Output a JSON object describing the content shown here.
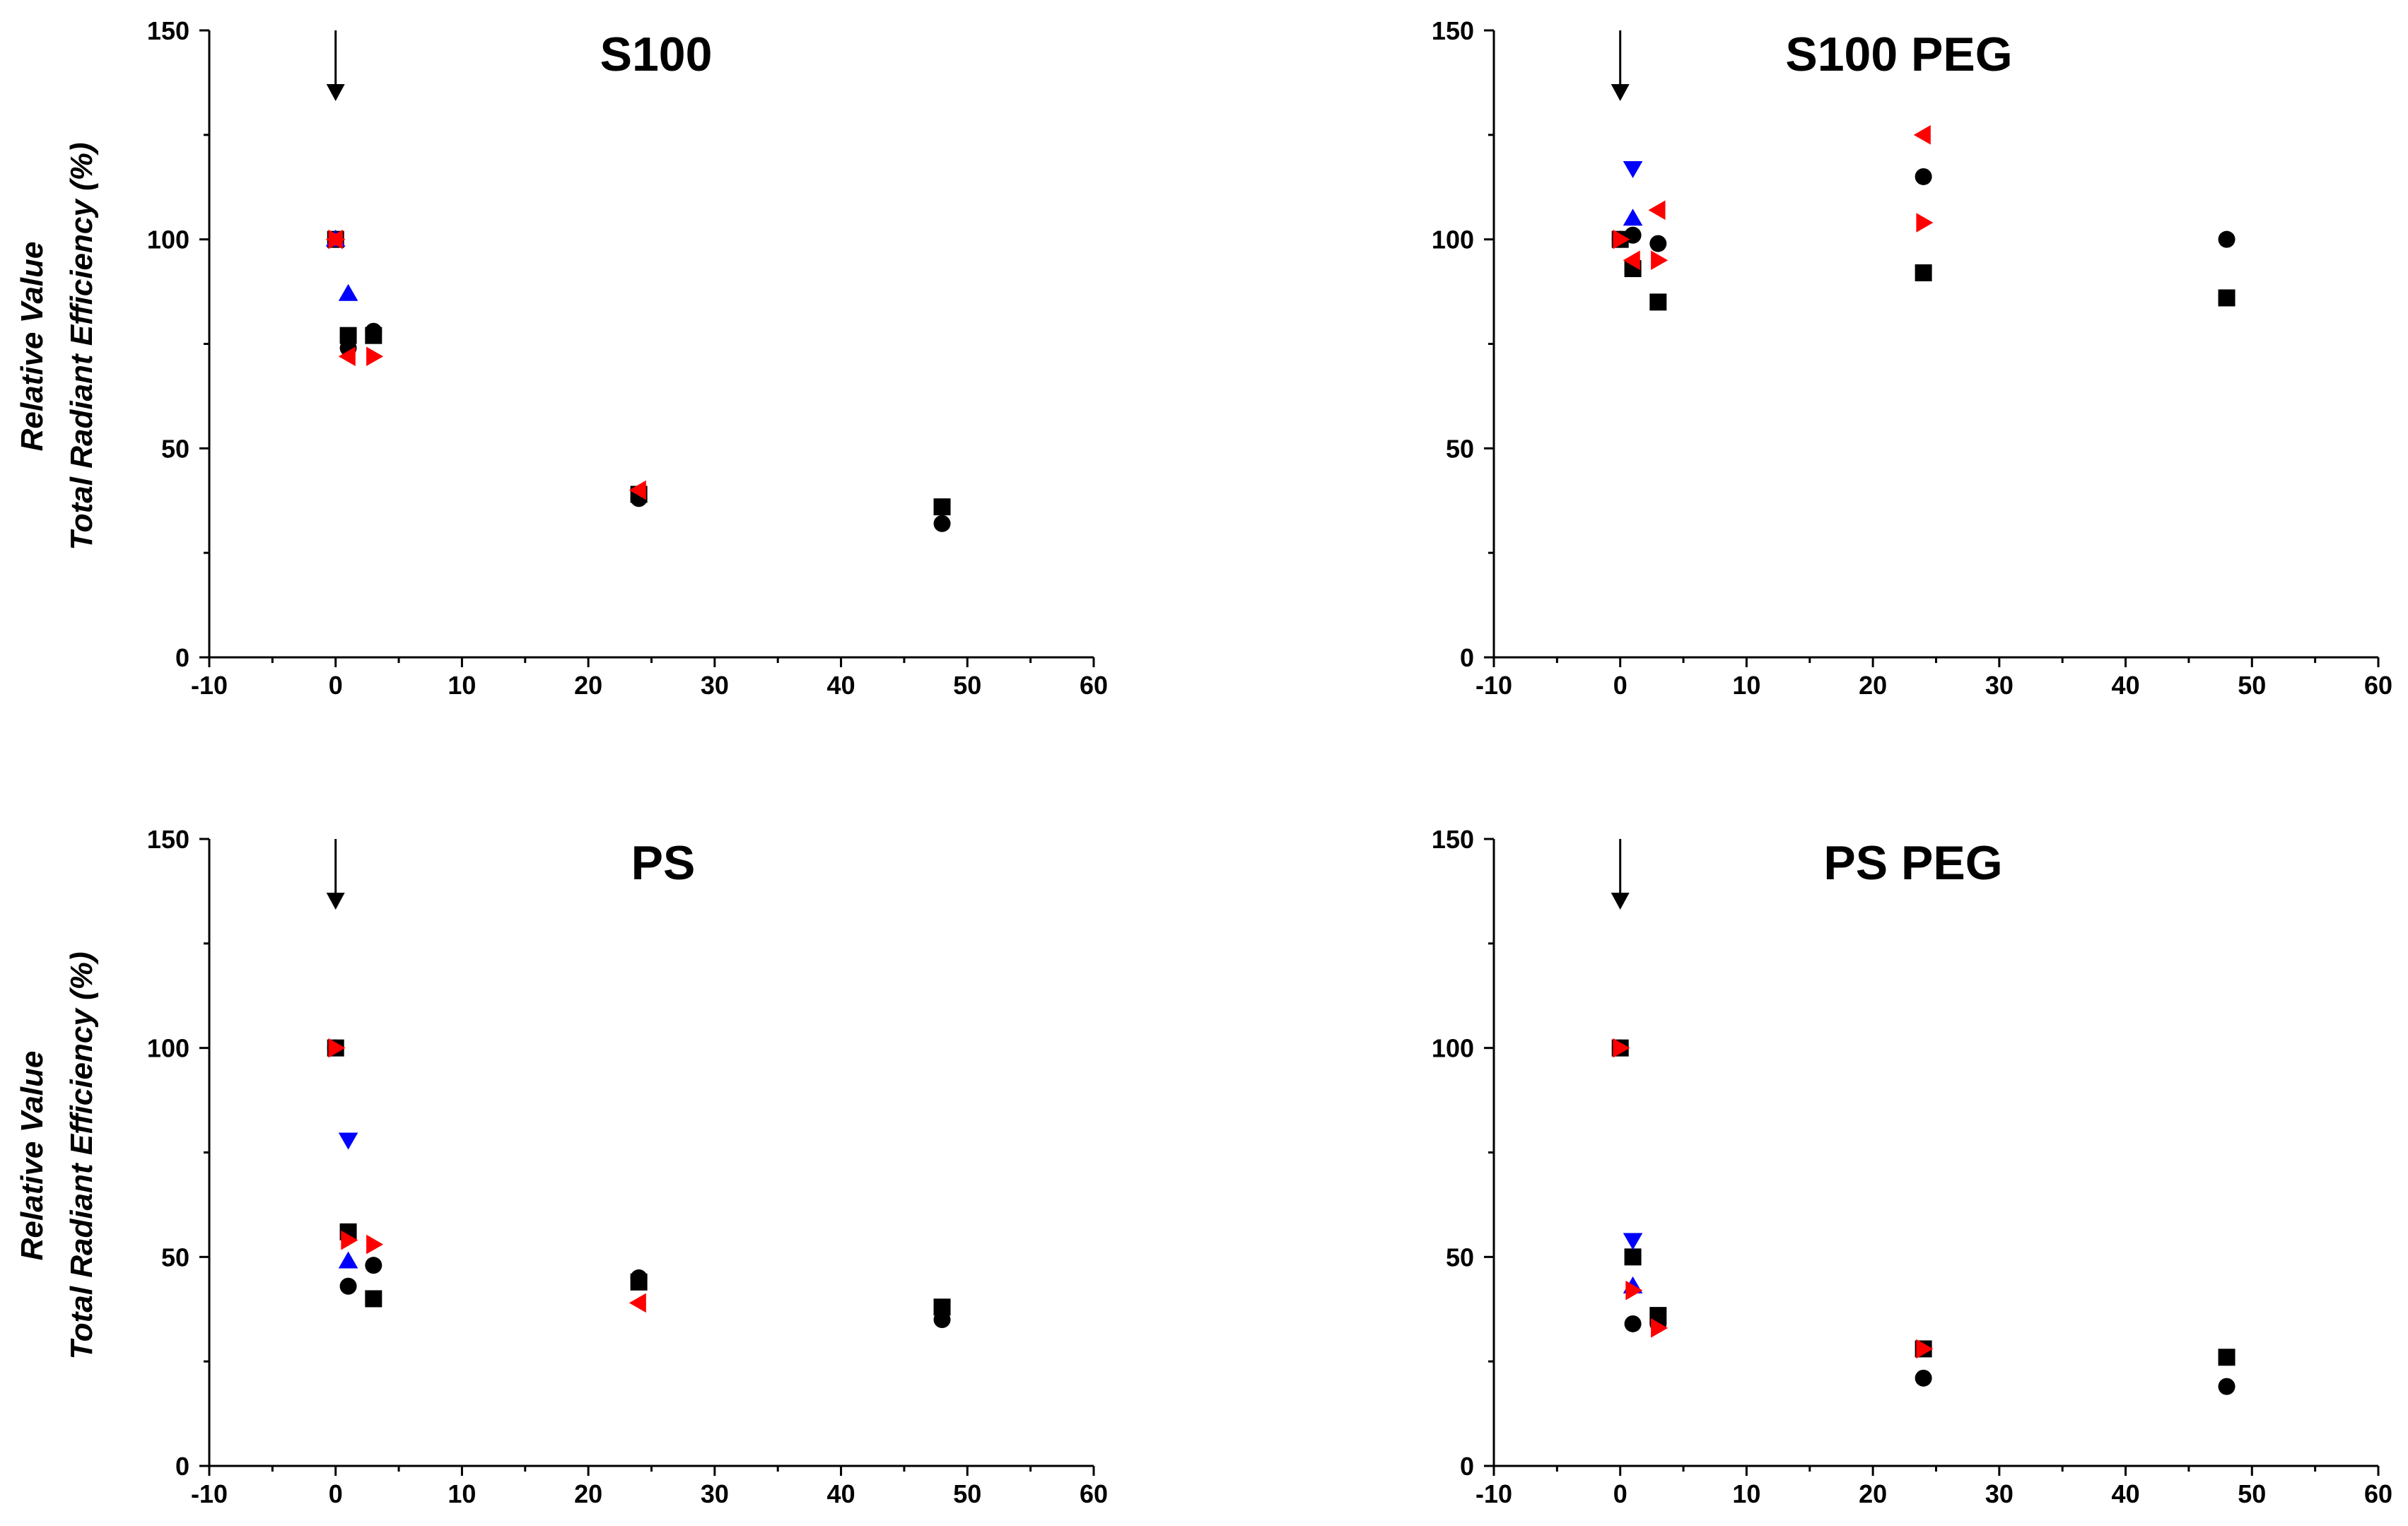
{
  "figure": {
    "ylabel_line1": "Relative Value",
    "ylabel_line2": "Total Radiant Efficiency (%)"
  },
  "colors": {
    "black": "#000000",
    "blue": "#0000ff",
    "red": "#ff0000"
  },
  "chart_data": [
    {
      "type": "scatter",
      "title": "S100",
      "xlim": [
        -10,
        60
      ],
      "ylim": [
        0,
        150
      ],
      "xticks": [
        -10,
        0,
        10,
        20,
        30,
        40,
        50,
        60
      ],
      "yticks": [
        0,
        50,
        100,
        150
      ],
      "arrow_x": 0,
      "series": [
        {
          "name": "square",
          "marker": "square",
          "color": "#000000",
          "points": [
            [
              0,
              100
            ],
            [
              1,
              77
            ],
            [
              3,
              77
            ],
            [
              24,
              39
            ],
            [
              48,
              36
            ]
          ]
        },
        {
          "name": "circle",
          "marker": "circle",
          "color": "#000000",
          "points": [
            [
              0,
              100
            ],
            [
              1,
              74
            ],
            [
              3,
              78
            ],
            [
              24,
              38
            ],
            [
              48,
              32
            ]
          ]
        },
        {
          "name": "triangle-up",
          "marker": "triangle-up",
          "color": "#0000ff",
          "points": [
            [
              0,
              100
            ],
            [
              1,
              87
            ]
          ]
        },
        {
          "name": "triangle-left",
          "marker": "triangle-left",
          "color": "#ff0000",
          "points": [
            [
              0,
              100
            ],
            [
              1,
              72
            ],
            [
              24,
              40
            ]
          ]
        },
        {
          "name": "triangle-right",
          "marker": "triangle-right",
          "color": "#ff0000",
          "points": [
            [
              0,
              100
            ],
            [
              3,
              72
            ]
          ]
        }
      ]
    },
    {
      "type": "scatter",
      "title": "S100 PEG",
      "xlim": [
        -10,
        60
      ],
      "ylim": [
        0,
        150
      ],
      "xticks": [
        -10,
        0,
        10,
        20,
        30,
        40,
        50,
        60
      ],
      "yticks": [
        0,
        50,
        100,
        150
      ],
      "arrow_x": 0,
      "series": [
        {
          "name": "square",
          "marker": "square",
          "color": "#000000",
          "points": [
            [
              0,
              100
            ],
            [
              1,
              93
            ],
            [
              3,
              85
            ],
            [
              24,
              92
            ],
            [
              48,
              86
            ]
          ]
        },
        {
          "name": "circle",
          "marker": "circle",
          "color": "#000000",
          "points": [
            [
              0,
              100
            ],
            [
              1,
              101
            ],
            [
              3,
              99
            ],
            [
              24,
              115
            ],
            [
              48,
              100
            ]
          ]
        },
        {
          "name": "triangle-down",
          "marker": "triangle-down",
          "color": "#0000ff",
          "points": [
            [
              1,
              117
            ]
          ]
        },
        {
          "name": "triangle-up",
          "marker": "triangle-up",
          "color": "#0000ff",
          "points": [
            [
              1,
              105
            ]
          ]
        },
        {
          "name": "triangle-left",
          "marker": "triangle-left",
          "color": "#ff0000",
          "points": [
            [
              3,
              107
            ],
            [
              24,
              125
            ],
            [
              1,
              95
            ]
          ]
        },
        {
          "name": "triangle-right",
          "marker": "triangle-right",
          "color": "#ff0000",
          "points": [
            [
              0,
              100
            ],
            [
              3,
              95
            ],
            [
              24,
              104
            ]
          ]
        }
      ]
    },
    {
      "type": "scatter",
      "title": "PS",
      "xlim": [
        -10,
        60
      ],
      "ylim": [
        0,
        150
      ],
      "xticks": [
        -10,
        0,
        10,
        20,
        30,
        40,
        50,
        60
      ],
      "yticks": [
        0,
        50,
        100,
        150
      ],
      "arrow_x": 0,
      "series": [
        {
          "name": "square",
          "marker": "square",
          "color": "#000000",
          "points": [
            [
              0,
              100
            ],
            [
              1,
              56
            ],
            [
              3,
              40
            ],
            [
              24,
              44
            ],
            [
              48,
              38
            ]
          ]
        },
        {
          "name": "circle",
          "marker": "circle",
          "color": "#000000",
          "points": [
            [
              0,
              100
            ],
            [
              1,
              43
            ],
            [
              3,
              48
            ],
            [
              24,
              45
            ],
            [
              48,
              35
            ]
          ]
        },
        {
          "name": "triangle-down",
          "marker": "triangle-down",
          "color": "#0000ff",
          "points": [
            [
              1,
              78
            ]
          ]
        },
        {
          "name": "triangle-up",
          "marker": "triangle-up",
          "color": "#0000ff",
          "points": [
            [
              1,
              49
            ]
          ]
        },
        {
          "name": "triangle-left",
          "marker": "triangle-left",
          "color": "#ff0000",
          "points": [
            [
              24,
              39
            ]
          ]
        },
        {
          "name": "triangle-right",
          "marker": "triangle-right",
          "color": "#ff0000",
          "points": [
            [
              0,
              100
            ],
            [
              1,
              54
            ],
            [
              3,
              53
            ]
          ]
        }
      ]
    },
    {
      "type": "scatter",
      "title": "PS PEG",
      "xlim": [
        -10,
        60
      ],
      "ylim": [
        0,
        150
      ],
      "xticks": [
        -10,
        0,
        10,
        20,
        30,
        40,
        50,
        60
      ],
      "yticks": [
        0,
        50,
        100,
        150
      ],
      "arrow_x": 0,
      "series": [
        {
          "name": "square",
          "marker": "square",
          "color": "#000000",
          "points": [
            [
              0,
              100
            ],
            [
              1,
              50
            ],
            [
              3,
              36
            ],
            [
              24,
              28
            ],
            [
              48,
              26
            ]
          ]
        },
        {
          "name": "circle",
          "marker": "circle",
          "color": "#000000",
          "points": [
            [
              0,
              100
            ],
            [
              1,
              34
            ],
            [
              3,
              34
            ],
            [
              24,
              21
            ],
            [
              48,
              19
            ]
          ]
        },
        {
          "name": "triangle-down",
          "marker": "triangle-down",
          "color": "#0000ff",
          "points": [
            [
              1,
              54
            ]
          ]
        },
        {
          "name": "triangle-up",
          "marker": "triangle-up",
          "color": "#0000ff",
          "points": [
            [
              1,
              43
            ]
          ]
        },
        {
          "name": "triangle-right",
          "marker": "triangle-right",
          "color": "#ff0000",
          "points": [
            [
              0,
              100
            ],
            [
              1,
              42
            ],
            [
              3,
              33
            ],
            [
              24,
              28
            ]
          ]
        }
      ]
    }
  ]
}
